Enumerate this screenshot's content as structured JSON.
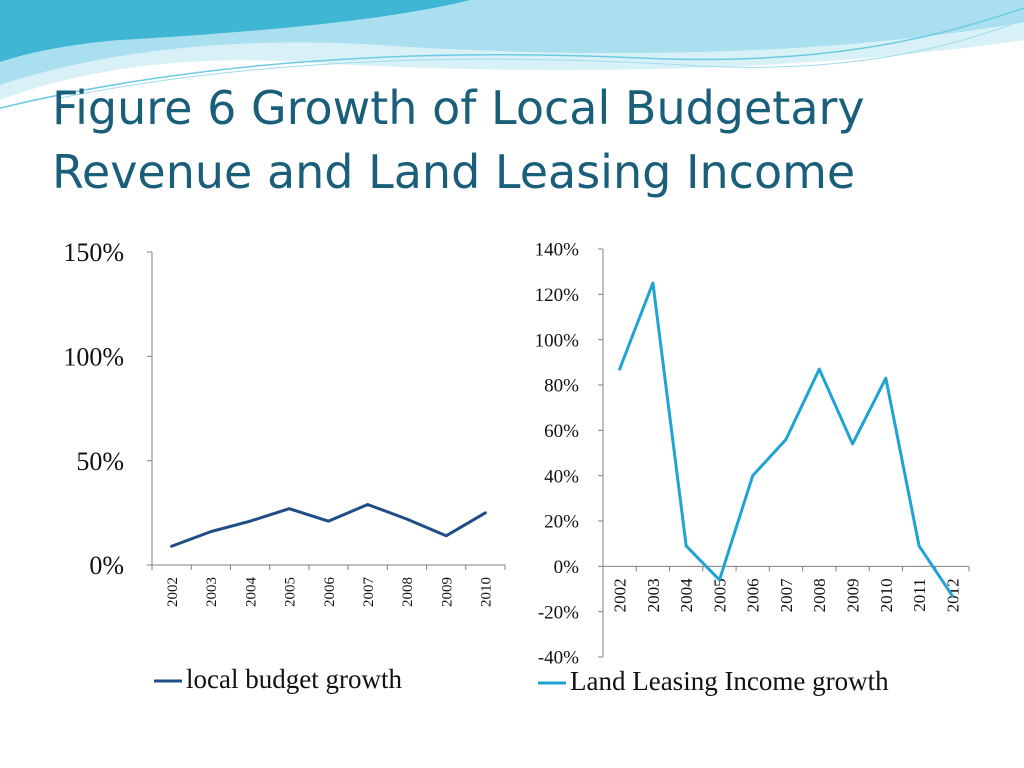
{
  "slide": {
    "title_line1": "Figure 6 Growth of Local Budgetary",
    "title_line2": "Revenue and Land Leasing Income",
    "colors": {
      "title": "#1a5f7a",
      "wave_dark": "#3fb6d4",
      "wave_light": "#bfe9f3",
      "axis": "#808080"
    }
  },
  "chart_data": [
    {
      "type": "line",
      "title": "",
      "xlabel": "",
      "ylabel": "",
      "categories": [
        "2002",
        "2003",
        "2004",
        "2005",
        "2006",
        "2007",
        "2008",
        "2009",
        "2010"
      ],
      "ylim": [
        0,
        150
      ],
      "y_ticks": [
        "0%",
        "50%",
        "100%",
        "150%"
      ],
      "grid": false,
      "legend_position": "bottom",
      "series": [
        {
          "name": "local budget growth",
          "color": "#1f4e87",
          "values": [
            9,
            16,
            21,
            27,
            21,
            29,
            22,
            14,
            25
          ]
        }
      ]
    },
    {
      "type": "line",
      "title": "",
      "xlabel": "",
      "ylabel": "",
      "categories": [
        "2002",
        "2003",
        "2004",
        "2005",
        "2006",
        "2007",
        "2008",
        "2009",
        "2010",
        "2011",
        "2012"
      ],
      "ylim": [
        -40,
        140
      ],
      "y_ticks": [
        "-40%",
        "-20%",
        "0%",
        "20%",
        "40%",
        "60%",
        "80%",
        "100%",
        "120%",
        "140%"
      ],
      "grid": false,
      "legend_position": "bottom",
      "series": [
        {
          "name": "Land Leasing Income growth",
          "color": "#1fa3d4",
          "values": [
            87,
            125,
            9,
            -6,
            40,
            56,
            87,
            54,
            83,
            9,
            -13
          ]
        }
      ]
    }
  ]
}
